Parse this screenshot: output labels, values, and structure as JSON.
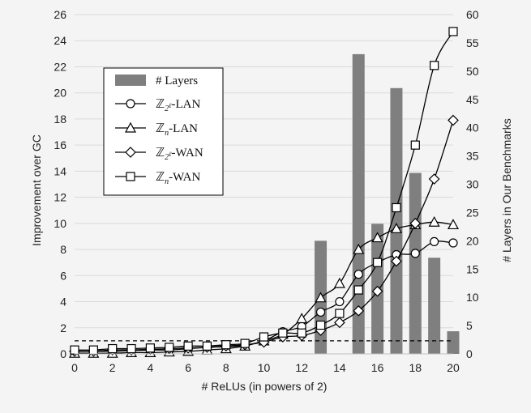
{
  "chart_data": {
    "type": "bar+line",
    "xlabel": "# ReLUs (in powers of 2)",
    "ylabel": "Improvement over GC",
    "y2label": "# Layers in Our Benchmarks",
    "xlim": [
      0,
      20
    ],
    "ylim": [
      0,
      26
    ],
    "y2lim": [
      0,
      60
    ],
    "x_ticks": [
      0,
      2,
      4,
      6,
      8,
      10,
      12,
      14,
      16,
      18,
      20
    ],
    "y_ticks": [
      0,
      2,
      4,
      6,
      8,
      10,
      12,
      14,
      16,
      18,
      20,
      22,
      24,
      26
    ],
    "y2_ticks": [
      0,
      5,
      10,
      15,
      20,
      25,
      30,
      35,
      40,
      45,
      50,
      55,
      60
    ],
    "reference_line_y": 1,
    "grid": "horizontal",
    "legend_position": "upper-left",
    "bars": {
      "name": "# Layers",
      "axis": "right",
      "x": [
        13,
        15,
        16,
        17,
        18,
        19,
        20
      ],
      "values": [
        20,
        53,
        23,
        47,
        32,
        17,
        4
      ],
      "color": "#7f7f7f"
    },
    "series": [
      {
        "name": "Z_{2^l}-LAN",
        "legend_parts": [
          "ℤ",
          "2",
          "ℓ",
          "-LAN"
        ],
        "marker": "circle",
        "x": [
          0,
          1,
          2,
          3,
          4,
          5,
          6,
          7,
          8,
          9,
          10,
          11,
          12,
          13,
          14,
          15,
          16,
          17,
          18,
          19,
          20
        ],
        "values": [
          0.2,
          0.2,
          0.2,
          0.25,
          0.3,
          0.3,
          0.4,
          0.5,
          0.55,
          0.65,
          1.0,
          1.7,
          2.1,
          3.2,
          4.0,
          6.1,
          7.0,
          7.6,
          7.7,
          8.6,
          8.5
        ]
      },
      {
        "name": "Z_n-LAN",
        "legend_parts": [
          "ℤ",
          "n",
          "",
          "-LAN"
        ],
        "marker": "triangle",
        "x": [
          0,
          1,
          2,
          3,
          4,
          5,
          6,
          7,
          8,
          9,
          10,
          11,
          12,
          13,
          14,
          15,
          16,
          17,
          18,
          19,
          20
        ],
        "values": [
          0.05,
          0.05,
          0.05,
          0.1,
          0.1,
          0.15,
          0.2,
          0.3,
          0.4,
          0.6,
          1.0,
          1.5,
          2.7,
          4.3,
          5.4,
          8.0,
          8.9,
          9.6,
          9.9,
          10.1,
          9.9
        ]
      },
      {
        "name": "Z_{2^l}-WAN",
        "legend_parts": [
          "ℤ",
          "2",
          "ℓ",
          "-WAN"
        ],
        "marker": "diamond",
        "x": [
          0,
          1,
          2,
          3,
          4,
          5,
          6,
          7,
          8,
          9,
          10,
          11,
          12,
          13,
          14,
          15,
          16,
          17,
          18,
          19,
          20
        ],
        "values": [
          0.2,
          0.2,
          0.3,
          0.3,
          0.35,
          0.4,
          0.45,
          0.5,
          0.6,
          0.7,
          0.9,
          1.3,
          1.4,
          1.8,
          2.4,
          3.3,
          4.8,
          7.1,
          10.0,
          13.4,
          17.9
        ]
      },
      {
        "name": "Z_n-WAN",
        "legend_parts": [
          "ℤ",
          "n",
          "",
          "-WAN"
        ],
        "marker": "square",
        "x": [
          0,
          1,
          2,
          3,
          4,
          5,
          6,
          7,
          8,
          9,
          10,
          11,
          12,
          13,
          14,
          15,
          16,
          17,
          18,
          19,
          20
        ],
        "values": [
          0.3,
          0.3,
          0.4,
          0.4,
          0.45,
          0.5,
          0.6,
          0.6,
          0.7,
          0.8,
          1.3,
          1.6,
          1.6,
          2.2,
          3.1,
          4.9,
          7.0,
          11.2,
          16.0,
          22.1,
          24.7
        ]
      }
    ]
  }
}
